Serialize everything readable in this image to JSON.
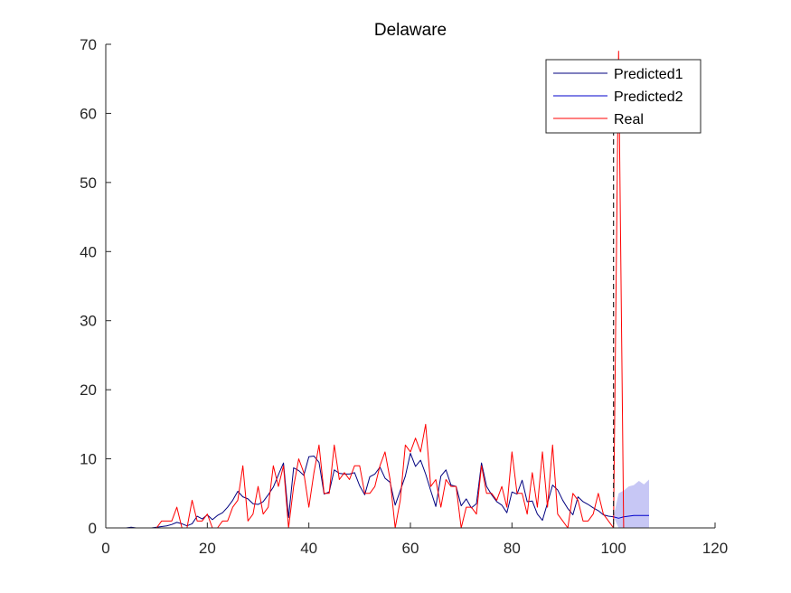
{
  "chart_data": {
    "type": "line",
    "title": "Delaware",
    "xlabel": "",
    "ylabel": "",
    "xlim": [
      0,
      120
    ],
    "ylim": [
      0,
      70
    ],
    "xticks": [
      0,
      20,
      40,
      60,
      80,
      100,
      120
    ],
    "yticks": [
      0,
      10,
      20,
      30,
      40,
      50,
      60,
      70
    ],
    "grid": false,
    "legend_position": "top-right",
    "legend": [
      "Predicted1",
      "Predicted2",
      "Real"
    ],
    "vertical_marker_x": 100,
    "series": [
      {
        "name": "Predicted1",
        "color": "#00007f",
        "x": [
          0,
          1,
          2,
          3,
          4,
          5,
          6,
          7,
          8,
          9,
          10,
          11,
          12,
          13,
          14,
          15,
          16,
          17,
          18,
          19,
          20,
          21,
          22,
          23,
          24,
          25,
          26,
          27,
          28,
          29,
          30,
          31,
          32,
          33,
          34,
          35,
          36,
          37,
          38,
          39,
          40,
          41,
          42,
          43,
          44,
          45,
          46,
          47,
          48,
          49,
          50,
          51,
          52,
          53,
          54,
          55,
          56,
          57,
          58,
          59,
          60,
          61,
          62,
          63,
          64,
          65,
          66,
          67,
          68,
          69,
          70,
          71,
          72,
          73,
          74,
          75,
          76,
          77,
          78,
          79,
          80,
          81,
          82,
          83,
          84,
          85,
          86,
          87,
          88,
          89,
          90,
          91,
          92,
          93,
          94,
          95,
          96,
          97,
          98,
          99,
          100
        ],
        "y": [
          0,
          0,
          0,
          0,
          0,
          0.1,
          0,
          0,
          0,
          0,
          0.1,
          0.2,
          0.3,
          0.5,
          0.8,
          0.6,
          0.3,
          0.6,
          1.7,
          1.3,
          1.9,
          1.2,
          1.8,
          2.2,
          3.0,
          4.0,
          5.3,
          4.5,
          4.2,
          3.5,
          3.4,
          3.8,
          4.8,
          5.9,
          7.7,
          9.4,
          1.5,
          8.7,
          8.3,
          7.6,
          10.3,
          10.4,
          9.5,
          4.9,
          5.2,
          8.4,
          7.9,
          7.8,
          7.8,
          8.0,
          6.1,
          4.8,
          7.4,
          7.8,
          8.8,
          7.2,
          6.6,
          3.3,
          5.4,
          7.5,
          10.8,
          8.9,
          9.8,
          7.8,
          5.4,
          3.1,
          7.5,
          8.4,
          6.2,
          6.0,
          3.2,
          4.2,
          2.9,
          3.5,
          9.4,
          6.0,
          4.8,
          3.8,
          3.3,
          2.2,
          5.2,
          4.9,
          6.9,
          3.8,
          3.9,
          2.0,
          1.1,
          3.6,
          6.2,
          5.5,
          4.0,
          2.8,
          1.9,
          4.5,
          3.8,
          3.4,
          2.9,
          2.5,
          1.9,
          1.7,
          1.6
        ]
      },
      {
        "name": "Predicted2",
        "color": "#0000cc",
        "fill_color": "#c7c7f5",
        "x": [
          100,
          101,
          102,
          103,
          104,
          105,
          106,
          107
        ],
        "y": [
          1.6,
          1.4,
          1.6,
          1.7,
          1.8,
          1.8,
          1.8,
          1.8
        ],
        "upper": [
          1.6,
          5.0,
          5.4,
          6.0,
          6.2,
          6.8,
          6.3,
          7.0
        ],
        "lower": [
          1.6,
          0.0,
          0.0,
          0.0,
          0.0,
          0.0,
          0.0,
          0.0
        ]
      },
      {
        "name": "Real",
        "color": "#ff0000",
        "x": [
          0,
          1,
          2,
          3,
          4,
          5,
          6,
          7,
          8,
          9,
          10,
          11,
          12,
          13,
          14,
          15,
          16,
          17,
          18,
          19,
          20,
          21,
          22,
          23,
          24,
          25,
          26,
          27,
          28,
          29,
          30,
          31,
          32,
          33,
          34,
          35,
          36,
          37,
          38,
          39,
          40,
          41,
          42,
          43,
          44,
          45,
          46,
          47,
          48,
          49,
          50,
          51,
          52,
          53,
          54,
          55,
          56,
          57,
          58,
          59,
          60,
          61,
          62,
          63,
          64,
          65,
          66,
          67,
          68,
          69,
          70,
          71,
          72,
          73,
          74,
          75,
          76,
          77,
          78,
          79,
          80,
          81,
          82,
          83,
          84,
          85,
          86,
          87,
          88,
          89,
          90,
          91,
          92,
          93,
          94,
          95,
          96,
          97,
          98,
          99,
          100,
          101,
          102,
          103,
          104,
          105,
          106,
          107
        ],
        "y": [
          0,
          0,
          0,
          0,
          0,
          0,
          0,
          0,
          0,
          0,
          0,
          1,
          1,
          1,
          3,
          0,
          0,
          4,
          1,
          1,
          2,
          0,
          0,
          1,
          1,
          3,
          4,
          9,
          1,
          2,
          6,
          2,
          3,
          9,
          6,
          9,
          0,
          6,
          10,
          8,
          3,
          8,
          12,
          5,
          5,
          12,
          7,
          8,
          7,
          9,
          9,
          5,
          5,
          6,
          9,
          11,
          7,
          0,
          4,
          12,
          11,
          13,
          11,
          15,
          6,
          7,
          3,
          7,
          6,
          6,
          0,
          3,
          3,
          2,
          9,
          5,
          5,
          4,
          6,
          3,
          11,
          5,
          5,
          2,
          8,
          3,
          11,
          3,
          12,
          2,
          1,
          0,
          5,
          4,
          1,
          1,
          2,
          5,
          2,
          1,
          0,
          69,
          0,
          0,
          0,
          0,
          0,
          0
        ]
      }
    ]
  }
}
